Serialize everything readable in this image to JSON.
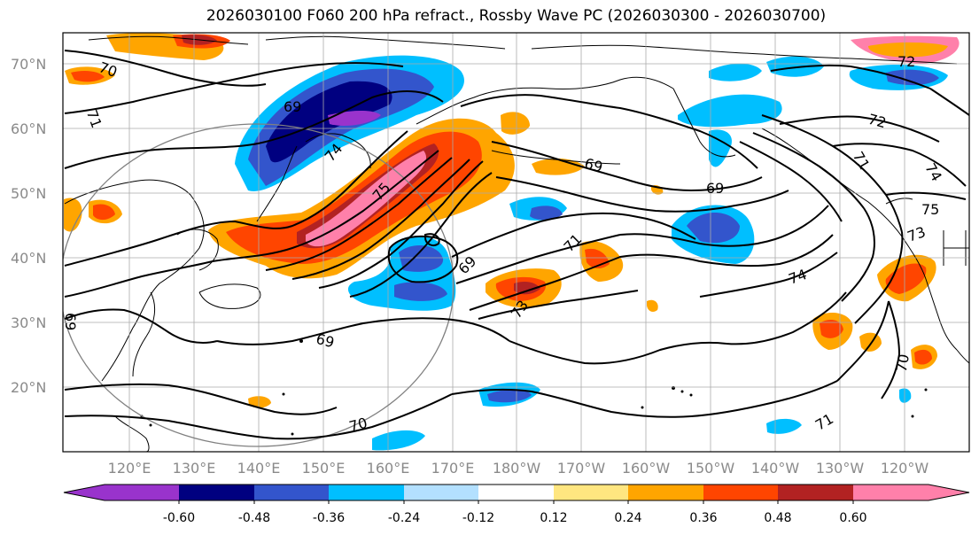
{
  "title": "2026030100 F060 200 hPa refract., Rossby Wave PC (2026030300 - 2026030700)",
  "lat_labels": [
    "70°N",
    "60°N",
    "50°N",
    "40°N",
    "30°N",
    "20°N"
  ],
  "lon_labels": [
    "120°E",
    "130°E",
    "140°E",
    "150°E",
    "160°E",
    "170°E",
    "180°W",
    "170°W",
    "160°W",
    "150°W",
    "140°W",
    "130°W",
    "120°W"
  ],
  "colorbar": {
    "colors": [
      "#9933cc",
      "#000080",
      "#3355cc",
      "#00bfff",
      "#b3e0ff",
      "#ffffff",
      "#ffe680",
      "#ffa500",
      "#ff4500",
      "#b22222",
      "#ff80aa"
    ],
    "tick_labels": [
      "-0.60",
      "-0.48",
      "-0.36",
      "-0.24",
      "-0.12",
      "0.12",
      "0.24",
      "0.36",
      "0.48",
      "0.60"
    ]
  },
  "contour_labels": [
    {
      "text": "70"
    },
    {
      "text": "71"
    },
    {
      "text": "69"
    },
    {
      "text": "74"
    },
    {
      "text": "75"
    },
    {
      "text": "69"
    },
    {
      "text": "69"
    },
    {
      "text": "71"
    },
    {
      "text": "69"
    },
    {
      "text": "73"
    },
    {
      "text": "69"
    },
    {
      "text": "70"
    },
    {
      "text": "71"
    },
    {
      "text": "74"
    },
    {
      "text": "72"
    },
    {
      "text": "72"
    },
    {
      "text": "74"
    },
    {
      "text": "75"
    },
    {
      "text": "73"
    },
    {
      "text": "70"
    },
    {
      "text": "71"
    },
    {
      "text": "69"
    }
  ]
}
